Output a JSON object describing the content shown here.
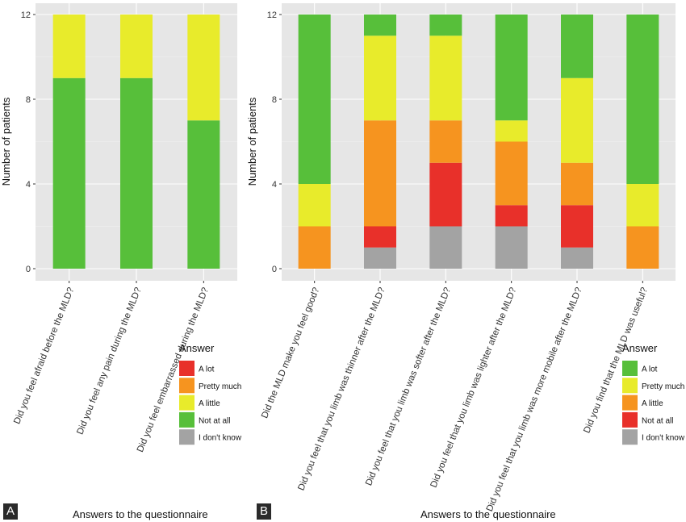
{
  "colors": {
    "green": "#57bf3a",
    "yellow": "#e8eb2b",
    "orange": "#f6941f",
    "red": "#e8302a",
    "grey": "#a3a3a3",
    "panel_bg": "#e6e6e6",
    "grid": "#ffffff"
  },
  "chart_data": [
    {
      "panel": "A",
      "type": "bar",
      "stacked": true,
      "xlabel": "Answers to the questionnaire",
      "ylabel": "Number of patients",
      "ylim": [
        0,
        12
      ],
      "yticks": [
        0,
        4,
        8,
        12
      ],
      "grid": true,
      "categories": [
        "Did you feel afraid before the MLD?",
        "Did you feel any pain during the MLD?",
        "Did you feel embarrassed during the MLD?"
      ],
      "series": [
        {
          "name": "I don't know",
          "color": "#a3a3a3",
          "values": [
            0,
            0,
            0
          ]
        },
        {
          "name": "Not at all",
          "color": "#57bf3a",
          "values": [
            9,
            9,
            7
          ]
        },
        {
          "name": "A little",
          "color": "#e8eb2b",
          "values": [
            3,
            3,
            5
          ]
        },
        {
          "name": "Pretty much",
          "color": "#f6941f",
          "values": [
            0,
            0,
            0
          ]
        },
        {
          "name": "A lot",
          "color": "#e8302a",
          "values": [
            0,
            0,
            0
          ]
        }
      ],
      "legend": {
        "title": "Answer",
        "position": "right",
        "items": [
          {
            "label": "A lot",
            "color": "#e8302a"
          },
          {
            "label": "Pretty much",
            "color": "#f6941f"
          },
          {
            "label": "A little",
            "color": "#e8eb2b"
          },
          {
            "label": "Not at all",
            "color": "#57bf3a"
          },
          {
            "label": "I don't know",
            "color": "#a3a3a3"
          }
        ]
      }
    },
    {
      "panel": "B",
      "type": "bar",
      "stacked": true,
      "xlabel": "Answers to the questionnaire",
      "ylabel": "Number of patients",
      "ylim": [
        0,
        12
      ],
      "yticks": [
        0,
        4,
        8,
        12
      ],
      "grid": true,
      "categories": [
        "Did the MLD make you feel good?",
        "Did you feel that you limb was thinner after the MLD?",
        "Did you feel that you limb was softer after the MLD?",
        "Did you feel that you limb was lighter after the MLD?",
        "Did you feel that you limb was more mobile after the MLD?",
        "Did you find that the MLD was useful?"
      ],
      "series": [
        {
          "name": "I don't know",
          "color": "#a3a3a3",
          "values": [
            0,
            1,
            2,
            2,
            1,
            0
          ]
        },
        {
          "name": "Not at all",
          "color": "#e8302a",
          "values": [
            0,
            1,
            3,
            1,
            2,
            0
          ]
        },
        {
          "name": "A little",
          "color": "#f6941f",
          "values": [
            2,
            5,
            2,
            3,
            2,
            2
          ]
        },
        {
          "name": "Pretty much",
          "color": "#e8eb2b",
          "values": [
            2,
            4,
            4,
            1,
            4,
            2
          ]
        },
        {
          "name": "A lot",
          "color": "#57bf3a",
          "values": [
            8,
            1,
            1,
            5,
            3,
            8
          ]
        }
      ],
      "legend": {
        "title": "Answer",
        "position": "right",
        "items": [
          {
            "label": "A lot",
            "color": "#57bf3a"
          },
          {
            "label": "Pretty much",
            "color": "#e8eb2b"
          },
          {
            "label": "A little",
            "color": "#f6941f"
          },
          {
            "label": "Not at all",
            "color": "#e8302a"
          },
          {
            "label": "I don't know",
            "color": "#a3a3a3"
          }
        ]
      }
    }
  ]
}
